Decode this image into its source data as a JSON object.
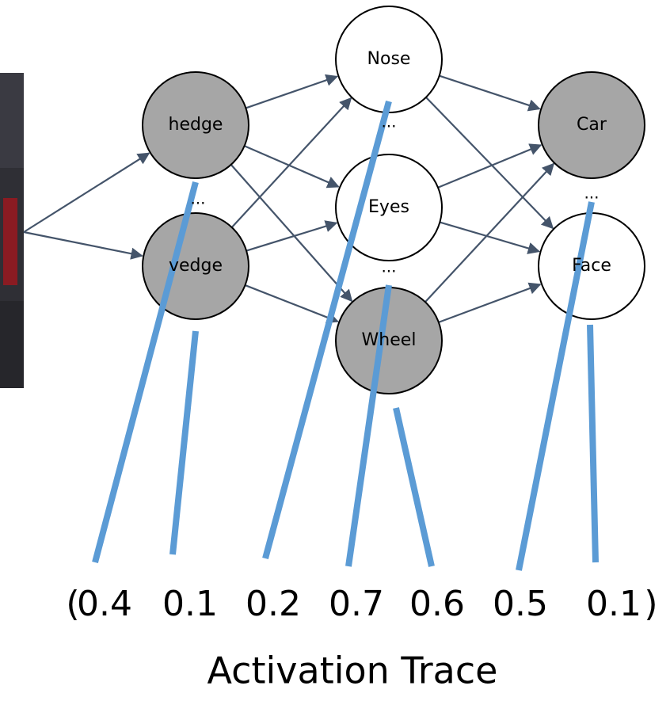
{
  "layers": [
    {
      "nodes": [
        {
          "label": "hedge"
        },
        {
          "label": "vedge"
        }
      ],
      "ellipses": [
        "..."
      ]
    },
    {
      "nodes": [
        {
          "label": "Nose"
        },
        {
          "label": "Eyes"
        },
        {
          "label": "Wheel"
        }
      ],
      "ellipses": [
        "...",
        "..."
      ]
    },
    {
      "nodes": [
        {
          "label": "Car"
        },
        {
          "label": "Face"
        }
      ],
      "ellipses": [
        "..."
      ]
    }
  ],
  "trace": {
    "open": "(",
    "values": [
      0.4,
      0.1,
      0.2,
      0.7,
      0.6,
      0.5,
      0.1
    ],
    "close": ")"
  },
  "title": "Activation Trace"
}
